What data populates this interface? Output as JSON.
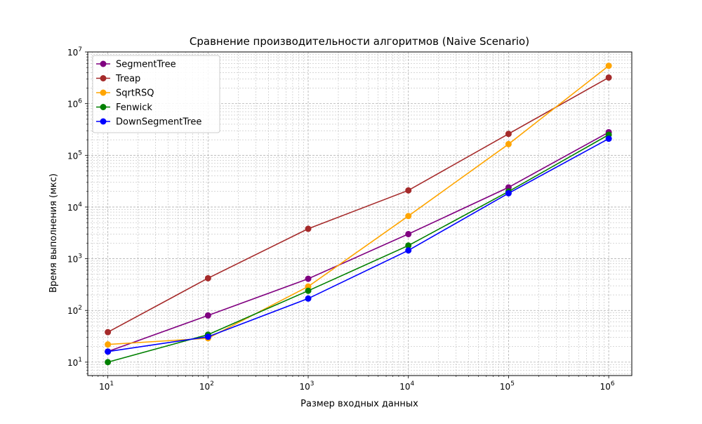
{
  "chart_data": {
    "type": "line",
    "title": "Сравнение производительности алгоритмов (Naive Scenario)",
    "xlabel": "Размер входных данных",
    "ylabel": "Время выполнения (мкс)",
    "xscale": "log",
    "yscale": "log",
    "x": [
      10,
      100,
      1000,
      10000,
      100000,
      1000000
    ],
    "xlim": [
      6.3,
      1700000.0
    ],
    "ylim": [
      5.5,
      10000000.0
    ],
    "x_ticks": [
      {
        "base": "10",
        "exp": "1",
        "value": 10
      },
      {
        "base": "10",
        "exp": "2",
        "value": 100
      },
      {
        "base": "10",
        "exp": "3",
        "value": 1000
      },
      {
        "base": "10",
        "exp": "4",
        "value": 10000
      },
      {
        "base": "10",
        "exp": "5",
        "value": 100000
      },
      {
        "base": "10",
        "exp": "6",
        "value": 1000000
      }
    ],
    "y_ticks": [
      {
        "base": "10",
        "exp": "1",
        "value": 10
      },
      {
        "base": "10",
        "exp": "2",
        "value": 100
      },
      {
        "base": "10",
        "exp": "3",
        "value": 1000
      },
      {
        "base": "10",
        "exp": "4",
        "value": 10000
      },
      {
        "base": "10",
        "exp": "5",
        "value": 100000
      },
      {
        "base": "10",
        "exp": "6",
        "value": 1000000
      },
      {
        "base": "10",
        "exp": "7",
        "value": 10000000
      }
    ],
    "grid": true,
    "legend_position": "top-left",
    "series": [
      {
        "name": "SegmentTree",
        "color": "#800080",
        "values": [
          16,
          80,
          410,
          3000,
          24000,
          280000
        ]
      },
      {
        "name": "Treap",
        "color": "#a52a2a",
        "values": [
          38,
          420,
          3800,
          21000,
          260000,
          3200000
        ]
      },
      {
        "name": "SqrtRSQ",
        "color": "#ffa500",
        "values": [
          22,
          29,
          290,
          6700,
          165000,
          5400000
        ]
      },
      {
        "name": "Fenwick",
        "color": "#008000",
        "values": [
          10,
          34,
          240,
          1800,
          20000,
          250000
        ]
      },
      {
        "name": "DownSegmentTree",
        "color": "#0000ff",
        "values": [
          16,
          31,
          170,
          1450,
          18500,
          210000
        ]
      }
    ]
  }
}
